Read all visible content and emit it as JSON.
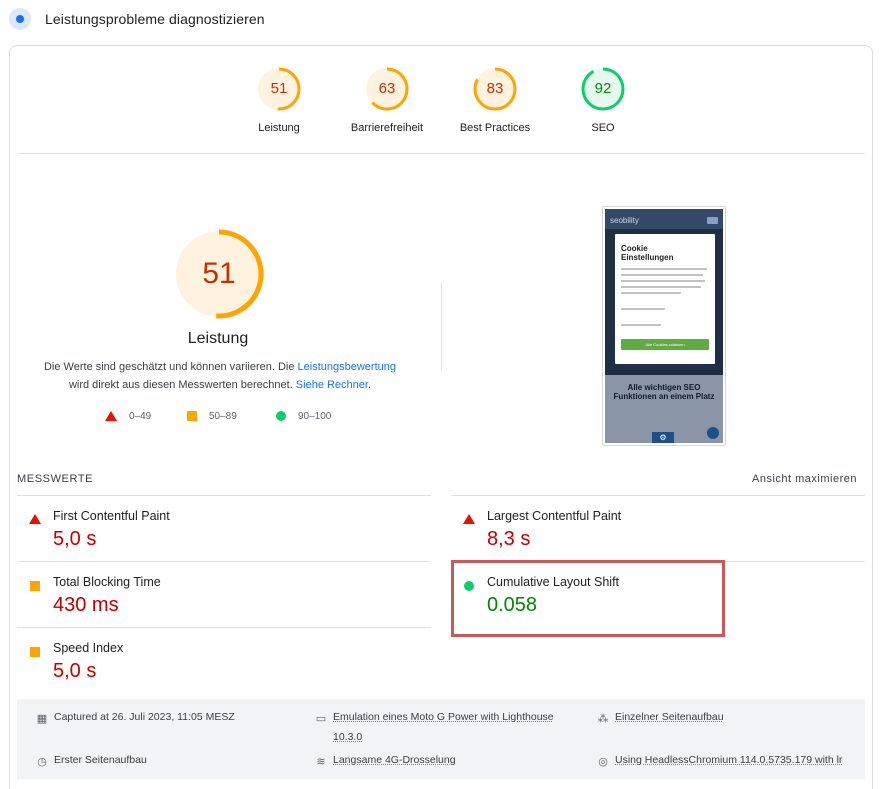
{
  "header": {
    "title": "Leistungsprobleme diagnostizieren"
  },
  "categories": [
    {
      "label": "Leistung",
      "score": "51",
      "status": "orange"
    },
    {
      "label": "Barrierefreiheit",
      "score": "63",
      "status": "orange"
    },
    {
      "label": "Best Practices",
      "score": "83",
      "status": "orange"
    },
    {
      "label": "SEO",
      "score": "92",
      "status": "green"
    }
  ],
  "performance": {
    "score": "51",
    "title": "Leistung",
    "desc_part1": "Die Werte sind geschätzt und können variieren. Die ",
    "desc_link1": "Leistungsbewertung",
    "desc_part2": "wird direkt aus diesen Messwerten berechnet. ",
    "desc_link2": "Siehe Rechner",
    "desc_end": "."
  },
  "legend": {
    "fail": "0–49",
    "average": "50–89",
    "pass": "90–100"
  },
  "thumbnail": {
    "brand": "seobility",
    "modal_title": "Cookie Einstellungen",
    "button": "Alle Cookies zulassen",
    "headline": "Alle wichtigen SEO Funktionen an einem Platz"
  },
  "metrics": {
    "heading": "MESSWERTE",
    "toggle": "Ansicht maximieren",
    "items": [
      {
        "name": "First Contentful Paint",
        "value": "5,0 s",
        "status": "fail"
      },
      {
        "name": "Largest Contentful Paint",
        "value": "8,3 s",
        "status": "fail"
      },
      {
        "name": "Total Blocking Time",
        "value": "430 ms",
        "status": "average"
      },
      {
        "name": "Cumulative Layout Shift",
        "value": "0.058",
        "status": "pass"
      },
      {
        "name": "Speed Index",
        "value": "5,0 s",
        "status": "average"
      }
    ]
  },
  "info": {
    "captured": "Captured at 26. Juli 2023, 11:05 MESZ",
    "emulation_1": "Emulation eines Moto G Power with Lighthouse",
    "emulation_2": "10.3.0",
    "single_load": "Einzelner Seitenaufbau",
    "first_load": "Erster Seitenaufbau",
    "throttling": "Langsame 4G-Drosselung",
    "browser": "Using HeadlessChromium 114.0.5735.179 with lr"
  },
  "colors": {
    "orange": "#ffa400",
    "green": "#0cce6b",
    "red": "#eb0f00",
    "link": "#1a73e8",
    "highlight": "#c85a5a"
  }
}
